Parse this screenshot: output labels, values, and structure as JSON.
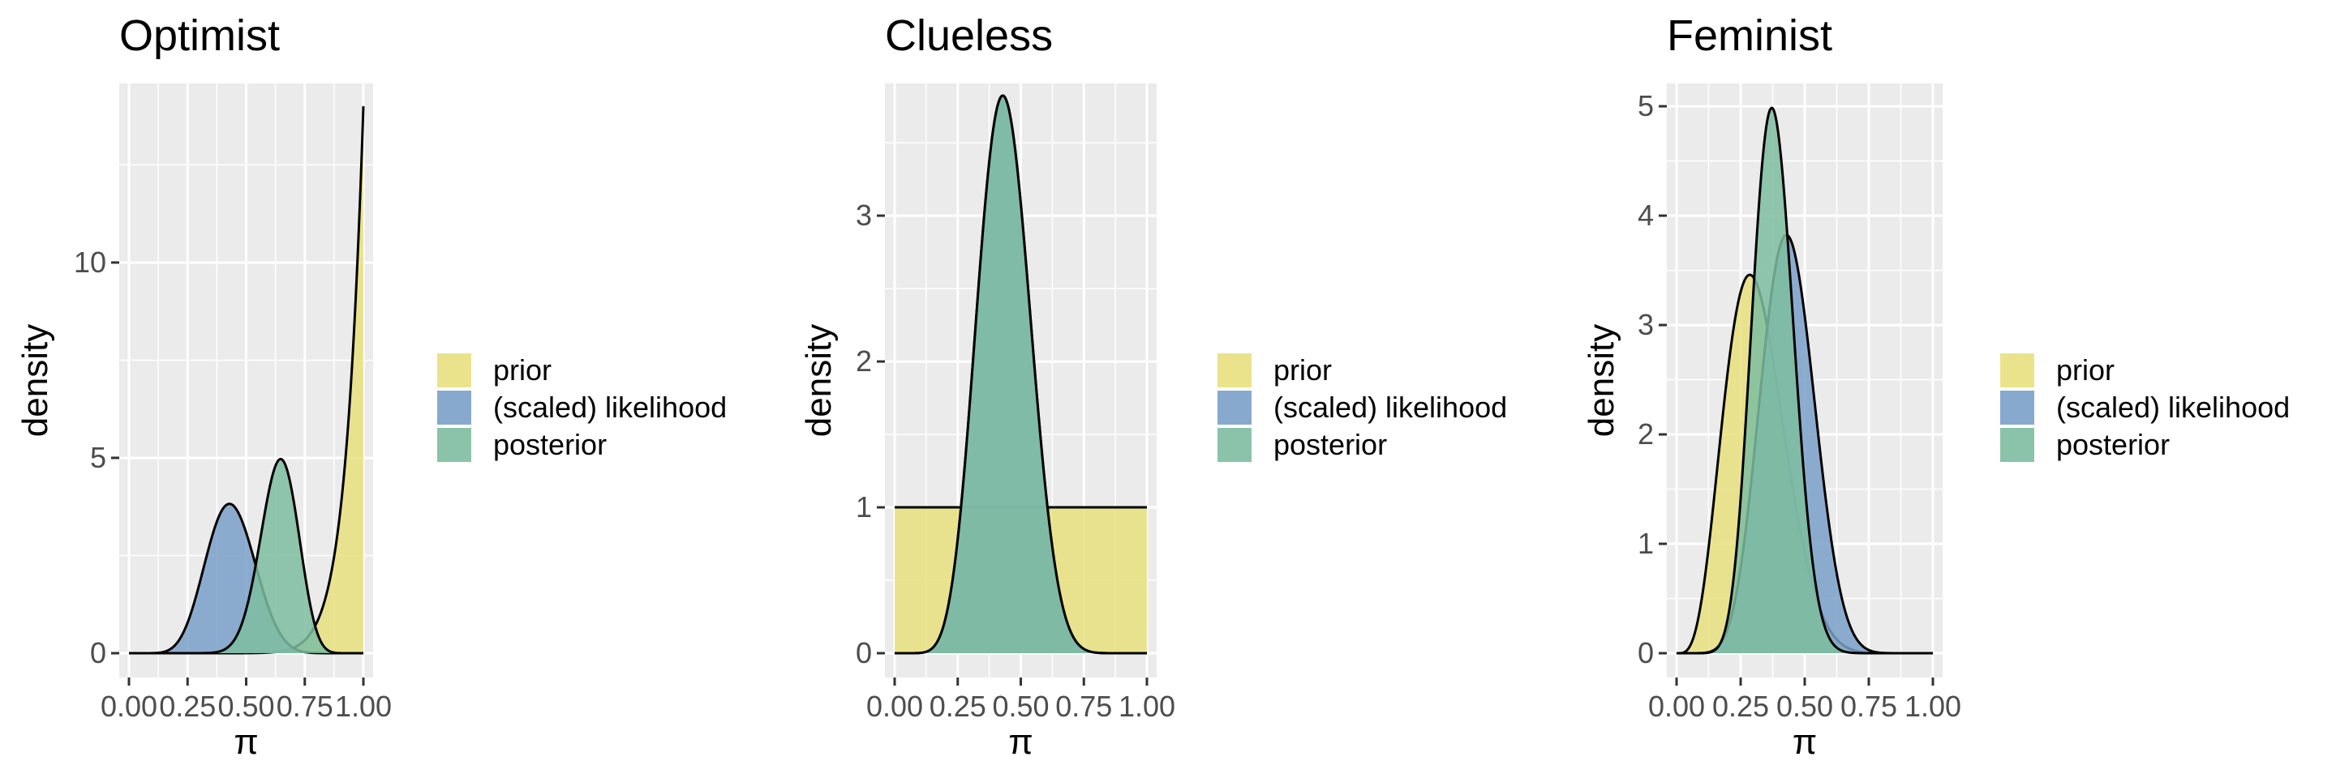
{
  "chart_data": [
    {
      "type": "area",
      "title": "Optimist",
      "xlabel": "π",
      "ylabel": "density",
      "xlim": [
        0,
        1
      ],
      "ylim": [
        0,
        14
      ],
      "x_ticks": [
        0,
        0.25,
        0.5,
        0.75,
        1
      ],
      "x_tick_labels": [
        "0.00",
        "0.25",
        "0.50",
        "0.75",
        "1.00"
      ],
      "y_ticks": [
        0,
        5,
        10
      ],
      "y_tick_labels": [
        "0",
        "5",
        "10"
      ],
      "series": [
        {
          "name": "prior",
          "distribution": "beta",
          "params": [
            14,
            1
          ]
        },
        {
          "name": "(scaled) likelihood",
          "distribution": "beta",
          "params": [
            10,
            13
          ]
        },
        {
          "name": "posterior",
          "distribution": "beta",
          "params": [
            23,
            13
          ]
        }
      ]
    },
    {
      "type": "area",
      "title": "Clueless",
      "xlabel": "π",
      "ylabel": "density",
      "xlim": [
        0,
        1
      ],
      "ylim": [
        0,
        3.75
      ],
      "x_ticks": [
        0,
        0.25,
        0.5,
        0.75,
        1
      ],
      "x_tick_labels": [
        "0.00",
        "0.25",
        "0.50",
        "0.75",
        "1.00"
      ],
      "y_ticks": [
        0,
        1,
        2,
        3
      ],
      "y_tick_labels": [
        "0",
        "1",
        "2",
        "3"
      ],
      "series": [
        {
          "name": "prior",
          "distribution": "beta",
          "params": [
            1,
            1
          ]
        },
        {
          "name": "(scaled) likelihood",
          "distribution": "beta",
          "params": [
            10,
            13
          ]
        },
        {
          "name": "posterior",
          "distribution": "beta",
          "params": [
            10,
            13
          ]
        }
      ]
    },
    {
      "type": "area",
      "title": "Feminist",
      "xlabel": "π",
      "ylabel": "density",
      "xlim": [
        0,
        1
      ],
      "ylim": [
        0,
        5
      ],
      "x_ticks": [
        0,
        0.25,
        0.5,
        0.75,
        1
      ],
      "x_tick_labels": [
        "0.00",
        "0.25",
        "0.50",
        "0.75",
        "1.00"
      ],
      "y_ticks": [
        0,
        1,
        2,
        3,
        4,
        5
      ],
      "y_tick_labels": [
        "0",
        "1",
        "2",
        "3",
        "4",
        "5"
      ],
      "series": [
        {
          "name": "prior",
          "distribution": "beta",
          "params": [
            5,
            11
          ]
        },
        {
          "name": "(scaled) likelihood",
          "distribution": "beta",
          "params": [
            10,
            13
          ]
        },
        {
          "name": "posterior",
          "distribution": "beta",
          "params": [
            14,
            23
          ]
        }
      ]
    }
  ],
  "legend": {
    "placement": "right",
    "items": [
      {
        "label": "prior",
        "color": "#E8E07F"
      },
      {
        "label": "(scaled) likelihood",
        "color": "#7AA0C9"
      },
      {
        "label": "posterior",
        "color": "#7DBDA0"
      }
    ]
  },
  "colors": {
    "panel_bg": "#EBEBEB",
    "grid": "#FFFFFF",
    "prior": "#E8E07F",
    "likelihood": "#7AA0C9",
    "posterior": "#7DBDA0",
    "outline": "#000000"
  }
}
